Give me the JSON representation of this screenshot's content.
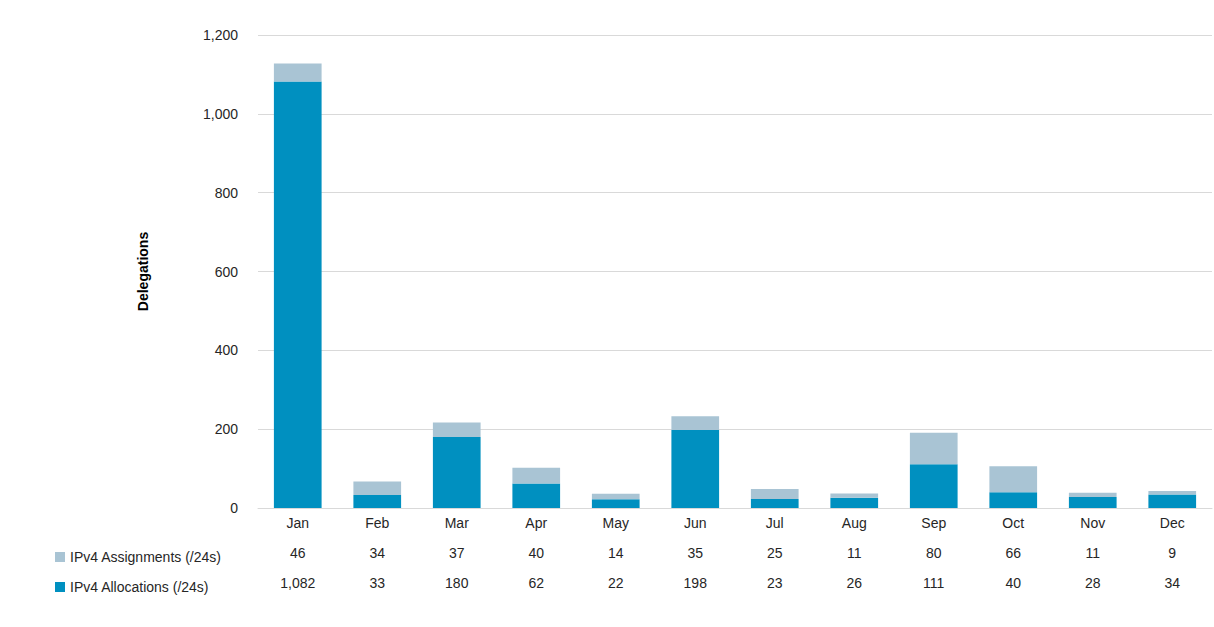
{
  "chart_data": {
    "type": "bar",
    "stacked": true,
    "grid": true,
    "legend": "bottom-left",
    "data_labels": true,
    "y_label": "Delegations",
    "categories": [
      "Jan",
      "Feb",
      "Mar",
      "Apr",
      "May",
      "Jun",
      "Jul",
      "Aug",
      "Sep",
      "Oct",
      "Nov",
      "Dec"
    ],
    "series": [
      {
        "name": "IPv4 Allocations (/24s)",
        "color": "#0090c0",
        "values": [
          1082,
          33,
          180,
          62,
          22,
          198,
          23,
          26,
          111,
          40,
          28,
          34
        ],
        "value_labels": [
          "1,082",
          "33",
          "180",
          "62",
          "22",
          "198",
          "23",
          "26",
          "111",
          "40",
          "28",
          "34"
        ]
      },
      {
        "name": "IPv4 Assignments (/24s)",
        "color": "#a9c4d4",
        "values": [
          46,
          34,
          37,
          40,
          14,
          35,
          25,
          11,
          80,
          66,
          11,
          9
        ]
      }
    ],
    "ylim": [
      0,
      1200
    ],
    "yticks": [
      0,
      200,
      400,
      600,
      800,
      {
        "value": 1000,
        "label": "1,000"
      },
      {
        "value": 1200,
        "label": "1,200"
      }
    ]
  }
}
